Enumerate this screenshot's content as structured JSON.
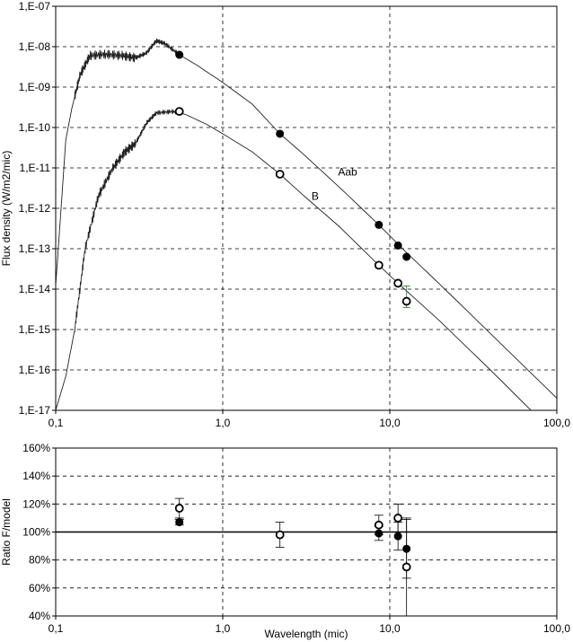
{
  "chart_data": [
    {
      "type": "scatter",
      "panel": "top",
      "ylabel": "Flux density (W/m2/mic)",
      "xlabel": "",
      "x_scale": "log",
      "y_scale": "log",
      "xlim": [
        0.1,
        100.0
      ],
      "ylim": [
        1e-17,
        1e-07
      ],
      "x_ticks": [
        "0,1",
        "1,0",
        "10,0",
        "100,0"
      ],
      "y_ticks": [
        "1,E-17",
        "1,E-16",
        "1,E-15",
        "1,E-14",
        "1,E-13",
        "1,E-12",
        "1,E-11",
        "1,E-10",
        "1,E-09",
        "1,E-08",
        "1,E-07"
      ],
      "grid": true,
      "series": [
        {
          "name": "Aab",
          "marker": "filled-circle",
          "points": [
            {
              "x": 0.55,
              "y": 6.3e-09
            },
            {
              "x": 2.2,
              "y": 7e-11
            },
            {
              "x": 8.6,
              "y": 3.9e-13
            },
            {
              "x": 11.2,
              "y": 1.2e-13
            },
            {
              "x": 12.6,
              "y": 6.3e-14
            }
          ],
          "model": [
            [
              0.1,
              1.2e-14
            ],
            [
              0.115,
              5e-11
            ],
            [
              0.125,
              3e-10
            ],
            [
              0.14,
              2e-09
            ],
            [
              0.16,
              6e-09
            ],
            [
              0.2,
              6.5e-09
            ],
            [
              0.25,
              6e-09
            ],
            [
              0.3,
              5.3e-09
            ],
            [
              0.35,
              7e-09
            ],
            [
              0.4,
              1.4e-08
            ],
            [
              0.45,
              1.2e-08
            ],
            [
              0.55,
              6.3e-09
            ],
            [
              0.7,
              3.5e-09
            ],
            [
              1.0,
              1.3e-09
            ],
            [
              1.5,
              3.8e-10
            ],
            [
              2.2,
              7e-11
            ],
            [
              3.0,
              2.3e-11
            ],
            [
              5.0,
              3.3e-12
            ],
            [
              8.6,
              3.9e-13
            ],
            [
              11.2,
              1.3e-13
            ],
            [
              12.6,
              8e-14
            ],
            [
              20.0,
              1.3e-14
            ],
            [
              40.0,
              8e-16
            ],
            [
              100.0,
              2e-17
            ]
          ]
        },
        {
          "name": "B",
          "marker": "open-circle",
          "points": [
            {
              "x": 0.55,
              "y": 2.5e-10
            },
            {
              "x": 2.2,
              "y": 7e-12
            },
            {
              "x": 8.6,
              "y": 3.9e-14
            },
            {
              "x": 11.2,
              "y": 1.4e-14
            },
            {
              "x": 12.6,
              "y": 5e-15
            }
          ],
          "model": [
            [
              0.1,
              1e-17
            ],
            [
              0.115,
              7e-17
            ],
            [
              0.13,
              1e-15
            ],
            [
              0.15,
              1e-13
            ],
            [
              0.18,
              2e-12
            ],
            [
              0.22,
              1e-11
            ],
            [
              0.26,
              2.5e-11
            ],
            [
              0.3,
              4e-11
            ],
            [
              0.35,
              1.3e-10
            ],
            [
              0.4,
              2.3e-10
            ],
            [
              0.5,
              2.5e-10
            ],
            [
              0.6,
              2.1e-10
            ],
            [
              0.8,
              1.2e-10
            ],
            [
              1.0,
              7e-11
            ],
            [
              1.5,
              2.5e-11
            ],
            [
              2.2,
              7e-12
            ],
            [
              3.0,
              2.2e-12
            ],
            [
              5.0,
              3.5e-13
            ],
            [
              8.6,
              3.9e-14
            ],
            [
              11.2,
              1.4e-14
            ],
            [
              20.0,
              1.6e-15
            ],
            [
              40.0,
              1e-16
            ],
            [
              70.0,
              1e-17
            ]
          ]
        }
      ]
    },
    {
      "type": "scatter",
      "panel": "bottom",
      "ylabel": "Ratio F/model",
      "xlabel": "Wavelength (mic)",
      "x_scale": "log",
      "xlim": [
        0.1,
        100.0
      ],
      "ylim": [
        40,
        160
      ],
      "x_ticks": [
        "0,1",
        "1,0",
        "10,0",
        "100,0"
      ],
      "y_ticks": [
        "40%",
        "60%",
        "80%",
        "100%",
        "120%",
        "140%",
        "160%"
      ],
      "grid": true,
      "reference_line": 100,
      "series": [
        {
          "name": "Aab",
          "marker": "filled-circle",
          "points": [
            {
              "x": 0.55,
              "y": 107,
              "err": 2
            },
            {
              "x": 8.6,
              "y": 99,
              "err": 5
            },
            {
              "x": 11.2,
              "y": 97,
              "err": 10
            },
            {
              "x": 12.6,
              "y": 88,
              "err": 21
            }
          ]
        },
        {
          "name": "B",
          "marker": "open-circle",
          "points": [
            {
              "x": 0.55,
              "y": 117,
              "err": 7
            },
            {
              "x": 2.2,
              "y": 98,
              "err": 9
            },
            {
              "x": 8.6,
              "y": 105,
              "err": 7
            },
            {
              "x": 11.2,
              "y": 110,
              "err": 10
            },
            {
              "x": 12.6,
              "y": 75,
              "err": 35
            }
          ]
        }
      ]
    }
  ]
}
